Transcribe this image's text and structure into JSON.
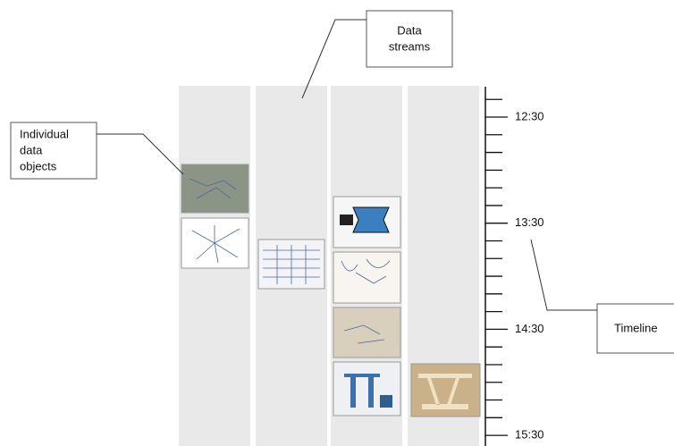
{
  "callouts": {
    "streams": {
      "lines": [
        "Data",
        "streams"
      ]
    },
    "objects": {
      "lines": [
        "Individual",
        "data",
        "objects"
      ]
    },
    "timeline": {
      "lines": [
        "Timeline"
      ]
    }
  },
  "timeline": {
    "labels": [
      "12:30",
      "13:30",
      "14:30",
      "15:30"
    ]
  }
}
